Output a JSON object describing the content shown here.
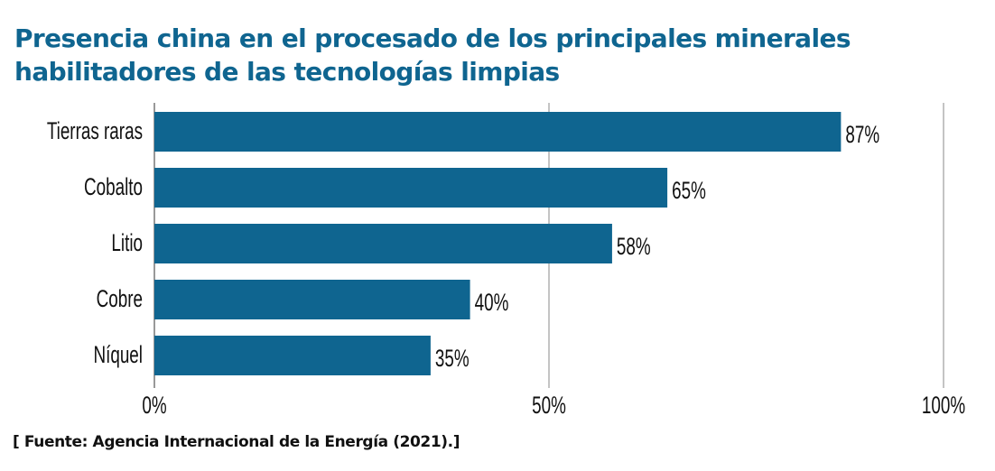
{
  "chart_data": {
    "type": "bar",
    "orientation": "horizontal",
    "title_lines": [
      "Presencia china en el procesado de los principales minerales",
      "habilitadores de las tecnologías limpias"
    ],
    "categories": [
      "Tierras raras",
      "Cobalto",
      "Litio",
      "Cobre",
      "Níquel"
    ],
    "values": [
      87,
      65,
      58,
      40,
      35
    ],
    "value_labels": [
      "87%",
      "65%",
      "58%",
      "40%",
      "35%"
    ],
    "xlim": [
      0,
      100
    ],
    "xticks": [
      0,
      50,
      100
    ],
    "xtick_labels": [
      "0%",
      "50%",
      "100%"
    ],
    "xlabel": "",
    "ylabel": "",
    "grid": "vertical lines at ticks",
    "bar_color": "#0f6590",
    "source": "[ Fuente: Agencia Internacional de la Energía (2021).]"
  }
}
